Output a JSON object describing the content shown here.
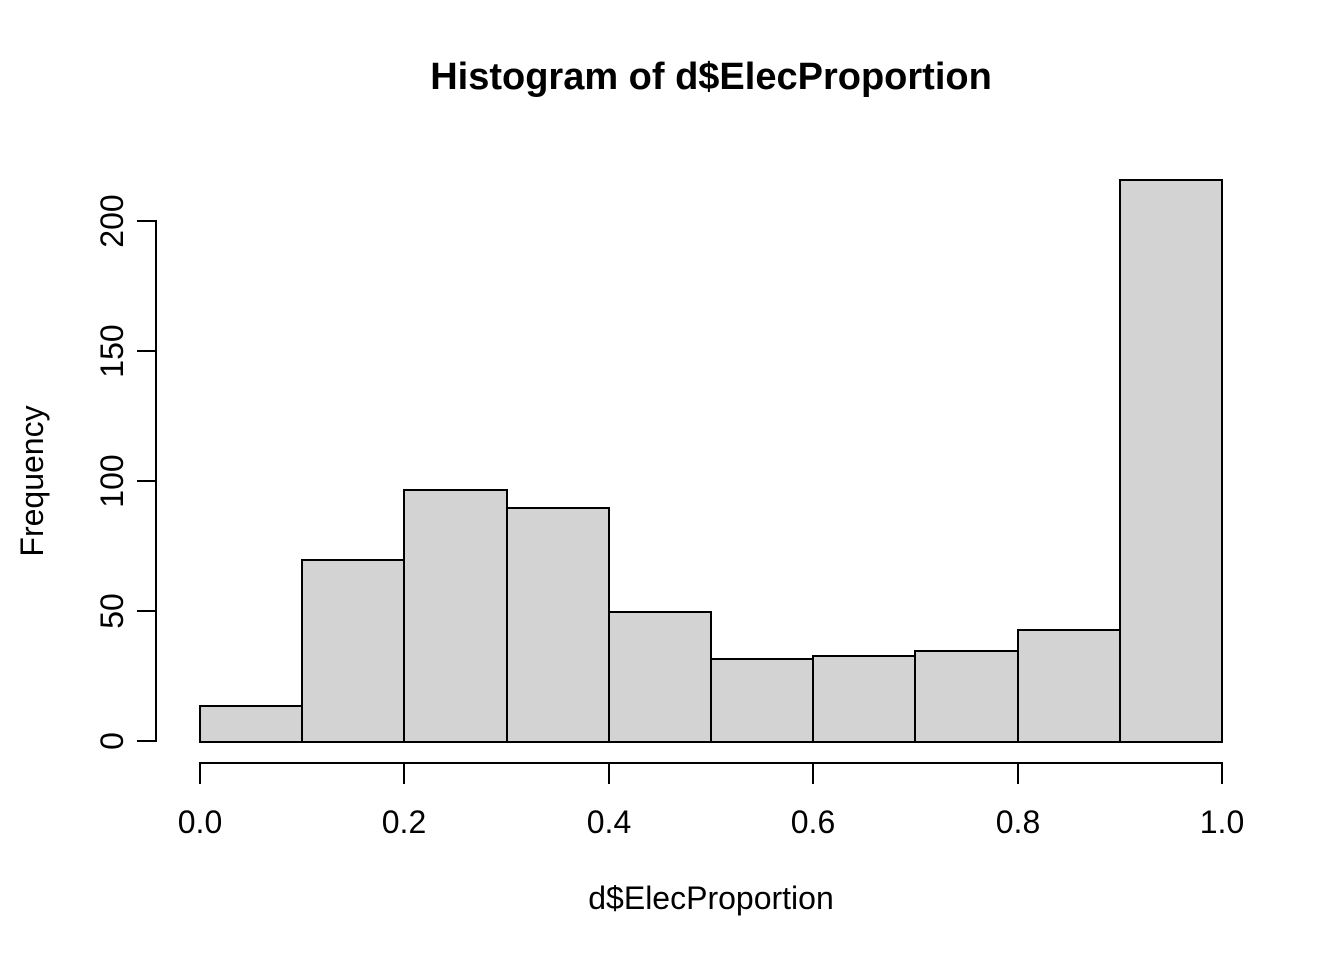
{
  "figure": {
    "background": "#ffffff",
    "text_color": "#000000"
  },
  "chart_data": {
    "type": "bar",
    "subtype": "histogram",
    "title": "Histogram of d$ElecProportion",
    "xlabel": "d$ElecProportion",
    "ylabel": "Frequency",
    "bin_width": 0.1,
    "bin_edges": [
      0.0,
      0.1,
      0.2,
      0.3,
      0.4,
      0.5,
      0.6,
      0.7,
      0.8,
      0.9,
      1.0
    ],
    "categories": [
      "0.0-0.1",
      "0.1-0.2",
      "0.2-0.3",
      "0.3-0.4",
      "0.4-0.5",
      "0.5-0.6",
      "0.6-0.7",
      "0.7-0.8",
      "0.8-0.9",
      "0.9-1.0"
    ],
    "values": [
      14,
      70,
      97,
      90,
      50,
      32,
      33,
      35,
      43,
      216
    ],
    "x_ticks": [
      "0.0",
      "0.2",
      "0.4",
      "0.6",
      "0.8",
      "1.0"
    ],
    "x_tick_values": [
      0,
      0.2,
      0.4,
      0.6,
      0.8,
      1.0
    ],
    "y_ticks": [
      "0",
      "50",
      "100",
      "150",
      "200"
    ],
    "y_tick_values": [
      0,
      50,
      100,
      150,
      200
    ],
    "xlim": [
      0.0,
      1.0
    ],
    "ylim": [
      0,
      216
    ],
    "grid": false,
    "legend": "none",
    "bar_fill": "#d3d3d3",
    "bar_border": "#000000"
  }
}
